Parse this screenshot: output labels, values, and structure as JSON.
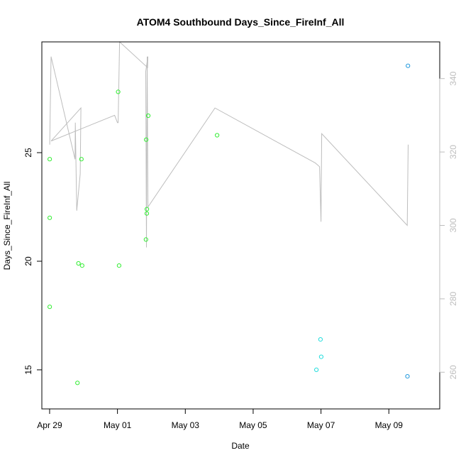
{
  "chart_data": {
    "type": "scatter",
    "title": "ATOM4 Southbound Days_Since_FireInf_All",
    "xlabel": "Date",
    "ylabel": "Days_Since_FireInf_All",
    "xlim": [
      "2024-04-28T18:30",
      "2024-05-10T12:00"
    ],
    "ylim": [
      13.2,
      30.1
    ],
    "y2lim": [
      250,
      350
    ],
    "x_ticks": [
      {
        "date": "2024-04-29T00:00",
        "label": "Apr 29"
      },
      {
        "date": "2024-05-01T00:00",
        "label": "May 01"
      },
      {
        "date": "2024-05-03T00:00",
        "label": "May 03"
      },
      {
        "date": "2024-05-05T00:00",
        "label": "May 05"
      },
      {
        "date": "2024-05-07T00:00",
        "label": "May 07"
      },
      {
        "date": "2024-05-09T00:00",
        "label": "May 09"
      }
    ],
    "y_ticks": [
      15,
      20,
      25
    ],
    "y2_ticks": [
      260,
      280,
      300,
      320,
      340
    ],
    "colors": {
      "green": "#33ee33",
      "cyan": "#22dddd",
      "blue": "#2299dd",
      "line": "#bdbdbd",
      "axis": "#000000",
      "right_axis": "#bdbdbd"
    },
    "points": [
      {
        "date": "2024-04-29T00:05",
        "y": 24.7,
        "color": "green"
      },
      {
        "date": "2024-04-29T00:03",
        "y": 22.0,
        "color": "green"
      },
      {
        "date": "2024-04-29T00:04",
        "y": 17.9,
        "color": "green"
      },
      {
        "date": "2024-04-29T19:40",
        "y": 14.4,
        "color": "green"
      },
      {
        "date": "2024-04-29T20:25",
        "y": 19.9,
        "color": "green"
      },
      {
        "date": "2024-04-29T22:30",
        "y": 24.7,
        "color": "green"
      },
      {
        "date": "2024-04-29T23:00",
        "y": 19.8,
        "color": "green"
      },
      {
        "date": "2024-05-01T00:30",
        "y": 27.8,
        "color": "green"
      },
      {
        "date": "2024-05-01T01:10",
        "y": 19.8,
        "color": "green"
      },
      {
        "date": "2024-05-01T20:10",
        "y": 21.0,
        "color": "green"
      },
      {
        "date": "2024-05-01T20:20",
        "y": 25.6,
        "color": "green"
      },
      {
        "date": "2024-05-01T20:45",
        "y": 22.2,
        "color": "green"
      },
      {
        "date": "2024-05-01T20:50",
        "y": 22.4,
        "color": "green"
      },
      {
        "date": "2024-05-01T21:45",
        "y": 26.7,
        "color": "green"
      },
      {
        "date": "2024-05-03T22:30",
        "y": 25.8,
        "color": "green"
      },
      {
        "date": "2024-05-06T20:45",
        "y": 15.0,
        "color": "cyan"
      },
      {
        "date": "2024-05-06T23:40",
        "y": 16.4,
        "color": "cyan"
      },
      {
        "date": "2024-05-07T00:10",
        "y": 15.6,
        "color": "cyan"
      },
      {
        "date": "2024-05-09T13:10",
        "y": 14.7,
        "color": "blue"
      },
      {
        "date": "2024-05-09T13:30",
        "y": 29.0,
        "color": "blue"
      }
    ],
    "right_axis_line": [
      {
        "date": "2024-04-29T00:05",
        "y2": 322
      },
      {
        "date": "2024-04-29T01:00",
        "y2": 346
      },
      {
        "date": "2024-04-29T18:00",
        "y2": 318
      },
      {
        "date": "2024-04-29T18:10",
        "y2": 328
      },
      {
        "date": "2024-04-29T19:10",
        "y2": 304
      },
      {
        "date": "2024-04-29T21:40",
        "y2": 314
      },
      {
        "date": "2024-04-29T22:10",
        "y2": 332
      },
      {
        "date": "2024-04-29T01:05",
        "y2": 323
      },
      {
        "date": "2024-04-30T22:00",
        "y2": 330
      },
      {
        "date": "2024-05-01T00:00",
        "y2": 328
      },
      {
        "date": "2024-05-01T00:30",
        "y2": 328
      },
      {
        "date": "2024-05-01T01:30",
        "y2": 350
      },
      {
        "date": "2024-05-01T21:20",
        "y2": 343
      },
      {
        "date": "2024-05-01T21:30",
        "y2": 346
      },
      {
        "date": "2024-05-01T20:00",
        "y2": 342
      },
      {
        "date": "2024-05-01T20:30",
        "y2": 294
      },
      {
        "date": "2024-05-01T21:00",
        "y2": 346
      },
      {
        "date": "2024-05-01T21:35",
        "y2": 305
      },
      {
        "date": "2024-05-03T21:00",
        "y2": 332
      },
      {
        "date": "2024-05-06T20:00",
        "y2": 317
      },
      {
        "date": "2024-05-06T23:00",
        "y2": 316
      },
      {
        "date": "2024-05-07T00:00",
        "y2": 301
      },
      {
        "date": "2024-05-07T00:30",
        "y2": 325
      },
      {
        "date": "2024-05-09T13:00",
        "y2": 300
      },
      {
        "date": "2024-05-09T13:40",
        "y2": 322
      }
    ]
  }
}
